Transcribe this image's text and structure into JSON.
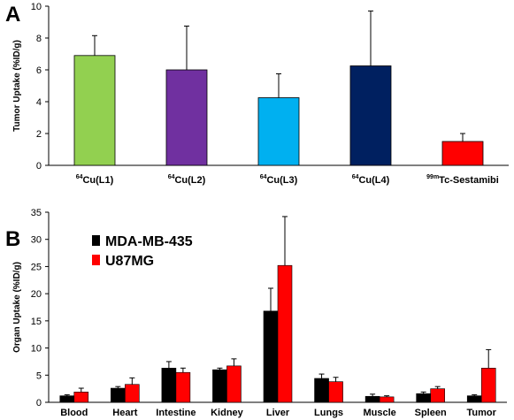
{
  "chart_data": [
    {
      "panel_label": "A",
      "type": "bar",
      "ylabel": "Tumor Uptake (%ID/g)",
      "ylim": [
        0,
        10
      ],
      "yticks": [
        "0",
        "2",
        "4",
        "6",
        "8",
        "10"
      ],
      "categories": [
        {
          "sup": "64",
          "base": "Cu(L1)"
        },
        {
          "sup": "64",
          "base": "Cu(L2)"
        },
        {
          "sup": "64",
          "base": "Cu(L3)"
        },
        {
          "sup": "64",
          "base": "Cu(L4)"
        },
        {
          "sup": "99m",
          "base": "Tc-Sestamibi"
        }
      ],
      "values": [
        6.9,
        6.0,
        4.25,
        6.25,
        1.5
      ],
      "errors": [
        1.25,
        2.75,
        1.5,
        3.45,
        0.5
      ],
      "colors": [
        "#92d050",
        "#7030a0",
        "#00b0f0",
        "#002060",
        "#ff0000"
      ]
    },
    {
      "panel_label": "B",
      "type": "bar",
      "ylabel": "Organ Uptake (%ID/g)",
      "ylim": [
        0,
        35
      ],
      "yticks": [
        "0",
        "5",
        "10",
        "15",
        "20",
        "25",
        "30",
        "35"
      ],
      "categories": [
        "Blood",
        "Heart",
        "Intestine",
        "Kidney",
        "Liver",
        "Lungs",
        "Muscle",
        "Spleen",
        "Tumor"
      ],
      "legend_position": "top-left",
      "series": [
        {
          "name": "MDA-MB-435",
          "color": "#000000",
          "values": [
            1.2,
            2.6,
            6.3,
            6.0,
            16.8,
            4.4,
            1.1,
            1.6,
            1.2
          ],
          "errors": [
            0.2,
            0.3,
            1.2,
            0.3,
            4.2,
            0.8,
            0.4,
            0.3,
            0.2
          ]
        },
        {
          "name": "U87MG",
          "color": "#ff0000",
          "values": [
            1.9,
            3.3,
            5.5,
            6.7,
            25.2,
            3.8,
            1.0,
            2.5,
            6.3
          ],
          "errors": [
            0.7,
            1.2,
            0.8,
            1.3,
            9.0,
            0.8,
            0.2,
            0.4,
            3.4
          ]
        }
      ]
    }
  ]
}
